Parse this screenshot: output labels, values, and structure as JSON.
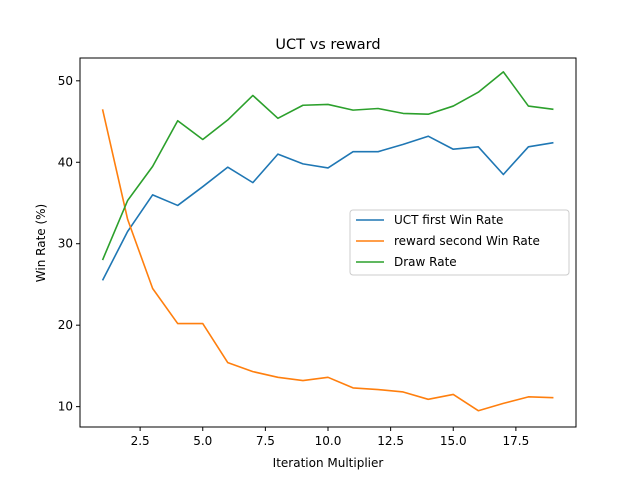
{
  "chart_data": {
    "type": "line",
    "title": "UCT vs reward",
    "xlabel": "Iteration Multiplier",
    "ylabel": "Win Rate (%)",
    "xlim": [
      0.1,
      19.9
    ],
    "ylim": [
      7.5,
      52.8
    ],
    "xticks": [
      2.5,
      5.0,
      7.5,
      10.0,
      12.5,
      15.0,
      17.5
    ],
    "xtick_labels": [
      "2.5",
      "5.0",
      "7.5",
      "10.0",
      "12.5",
      "15.0",
      "17.5"
    ],
    "yticks": [
      10,
      20,
      30,
      40,
      50
    ],
    "ytick_labels": [
      "10",
      "20",
      "30",
      "40",
      "50"
    ],
    "grid": false,
    "legend_position": "center-right",
    "x": [
      1,
      2,
      3,
      4,
      5,
      6,
      7,
      8,
      9,
      10,
      11,
      12,
      13,
      14,
      15,
      16,
      17,
      18,
      19
    ],
    "series": [
      {
        "name": "UCT first Win Rate",
        "color": "#1f77b4",
        "values": [
          25.5,
          31.5,
          36.0,
          34.7,
          37.0,
          39.4,
          37.5,
          41.0,
          39.8,
          39.3,
          41.3,
          41.3,
          42.2,
          43.2,
          41.6,
          41.9,
          38.5,
          41.9,
          42.4
        ]
      },
      {
        "name": "reward second Win Rate",
        "color": "#ff7f0e",
        "values": [
          46.5,
          33.0,
          24.5,
          20.2,
          20.2,
          15.4,
          14.3,
          13.6,
          13.2,
          13.6,
          12.3,
          12.1,
          11.8,
          10.9,
          11.5,
          9.5,
          10.4,
          11.2,
          11.1
        ]
      },
      {
        "name": "Draw Rate",
        "color": "#2ca02c",
        "values": [
          28.0,
          35.3,
          39.5,
          45.1,
          42.8,
          45.2,
          48.2,
          45.4,
          47.0,
          47.1,
          46.4,
          46.6,
          46.0,
          45.9,
          46.9,
          48.6,
          51.1,
          46.9,
          46.5
        ]
      }
    ]
  }
}
